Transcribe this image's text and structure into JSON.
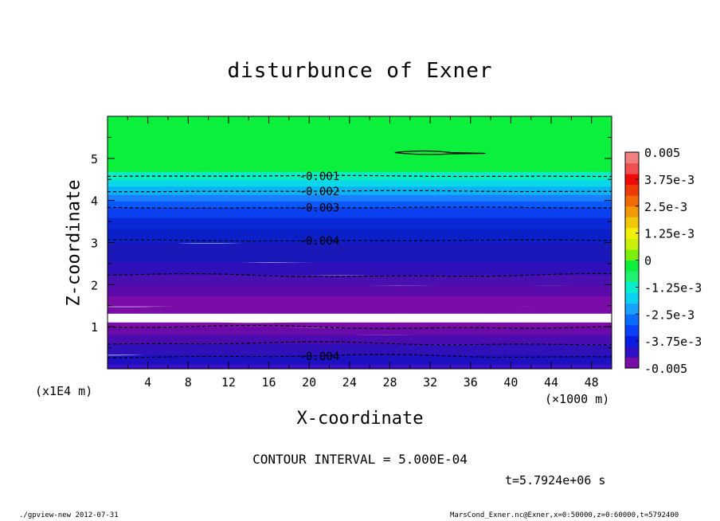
{
  "page": {
    "title": "disturbunce of Exner",
    "x_multiplier": "(×1000 m)",
    "y_multiplier": "(x1E4 m)",
    "contour_interval": "CONTOUR INTERVAL = 5.000E-04",
    "time": "t=5.7924e+06 s",
    "footer_left": "./gpview-new  2012-07-31",
    "footer_right": "MarsCond_Exner.nc@Exner,x=0:50000,z=0:60000,t=5792400"
  },
  "chart_data": {
    "type": "heatmap",
    "title": "disturbunce of Exner",
    "xlabel": "X-coordinate",
    "ylabel": "Z-coordinate",
    "xlim": [
      0,
      50
    ],
    "ylim": [
      0,
      6
    ],
    "x_ticks": [
      4,
      8,
      12,
      16,
      20,
      24,
      28,
      32,
      36,
      40,
      44,
      48
    ],
    "y_ticks": [
      1,
      2,
      3,
      4,
      5
    ],
    "colorbar": {
      "min": -0.005,
      "max": 0.005,
      "tick_labels": [
        "0.005",
        "3.75e-3",
        "2.5e-3",
        "1.25e-3",
        "0",
        "-1.25e-3",
        "-2.5e-3",
        "-3.75e-3",
        "-0.005"
      ],
      "colors": [
        "#7a0ca8",
        "#2f10c4",
        "#0a1ce2",
        "#0a40f6",
        "#0a6cfc",
        "#1aa0ff",
        "#0ad2f0",
        "#08ecd0",
        "#22f070",
        "#0af03c",
        "#7cf00a",
        "#c8f00a",
        "#f0f00a",
        "#f0c80a",
        "#f09a0a",
        "#f06a0a",
        "#f03a0a",
        "#f00a0a",
        "#f05050",
        "#f08080"
      ]
    },
    "layers": [
      {
        "z0": 0.0,
        "z1": 0.12,
        "color": "#3a10c8"
      },
      {
        "z0": 0.12,
        "z1": 0.35,
        "color": "#1d10c0"
      },
      {
        "z0": 0.35,
        "z1": 0.6,
        "color": "#3010b8"
      },
      {
        "z0": 0.6,
        "z1": 0.82,
        "color": "#4a0cb0"
      },
      {
        "z0": 0.82,
        "z1": 1.0,
        "color": "#6a0aa8"
      },
      {
        "z0": 1.0,
        "z1": 1.12,
        "color": "#7a0ca8"
      },
      {
        "z0": 1.12,
        "z1": 1.33,
        "color": "#ffffff"
      },
      {
        "z0": 1.33,
        "z1": 1.5,
        "color": "#7a0ca8"
      },
      {
        "z0": 1.5,
        "z1": 1.75,
        "color": "#7a0ca8"
      },
      {
        "z0": 1.75,
        "z1": 2.0,
        "color": "#5a0aaa"
      },
      {
        "z0": 2.0,
        "z1": 2.25,
        "color": "#4810b0"
      },
      {
        "z0": 2.25,
        "z1": 2.55,
        "color": "#2f10b8"
      },
      {
        "z0": 2.55,
        "z1": 3.0,
        "color": "#1a18b8"
      },
      {
        "z0": 3.0,
        "z1": 3.35,
        "color": "#0a20c8"
      },
      {
        "z0": 3.35,
        "z1": 3.6,
        "color": "#0a28d8"
      },
      {
        "z0": 3.6,
        "z1": 3.85,
        "color": "#0a40f0"
      },
      {
        "z0": 3.85,
        "z1": 4.0,
        "color": "#0a58fc"
      },
      {
        "z0": 4.0,
        "z1": 4.15,
        "color": "#1a80ff"
      },
      {
        "z0": 4.15,
        "z1": 4.35,
        "color": "#0ab4f4"
      },
      {
        "z0": 4.35,
        "z1": 4.5,
        "color": "#0ad8e8"
      },
      {
        "z0": 4.5,
        "z1": 4.7,
        "color": "#08ecc0"
      },
      {
        "z0": 4.7,
        "z1": 6.0,
        "color": "#0af03c"
      }
    ],
    "contours": [
      {
        "z": 0.3,
        "label": "-0.004",
        "label_x": 21.0
      },
      {
        "z": 0.6
      },
      {
        "z": 0.99
      },
      {
        "z": 2.22
      },
      {
        "z": 3.05,
        "label": "-0.004",
        "label_x": 21.0
      },
      {
        "z": 3.83,
        "label": "-0.003",
        "label_x": 21.0
      },
      {
        "z": 4.22,
        "label": "-0.002",
        "label_x": 21.0
      },
      {
        "z": 4.58,
        "label": "-0.001",
        "label_x": 21.0
      }
    ],
    "solid_features": [
      {
        "x_start": 28.5,
        "x_end": 37.5,
        "z": 5.12
      }
    ]
  }
}
